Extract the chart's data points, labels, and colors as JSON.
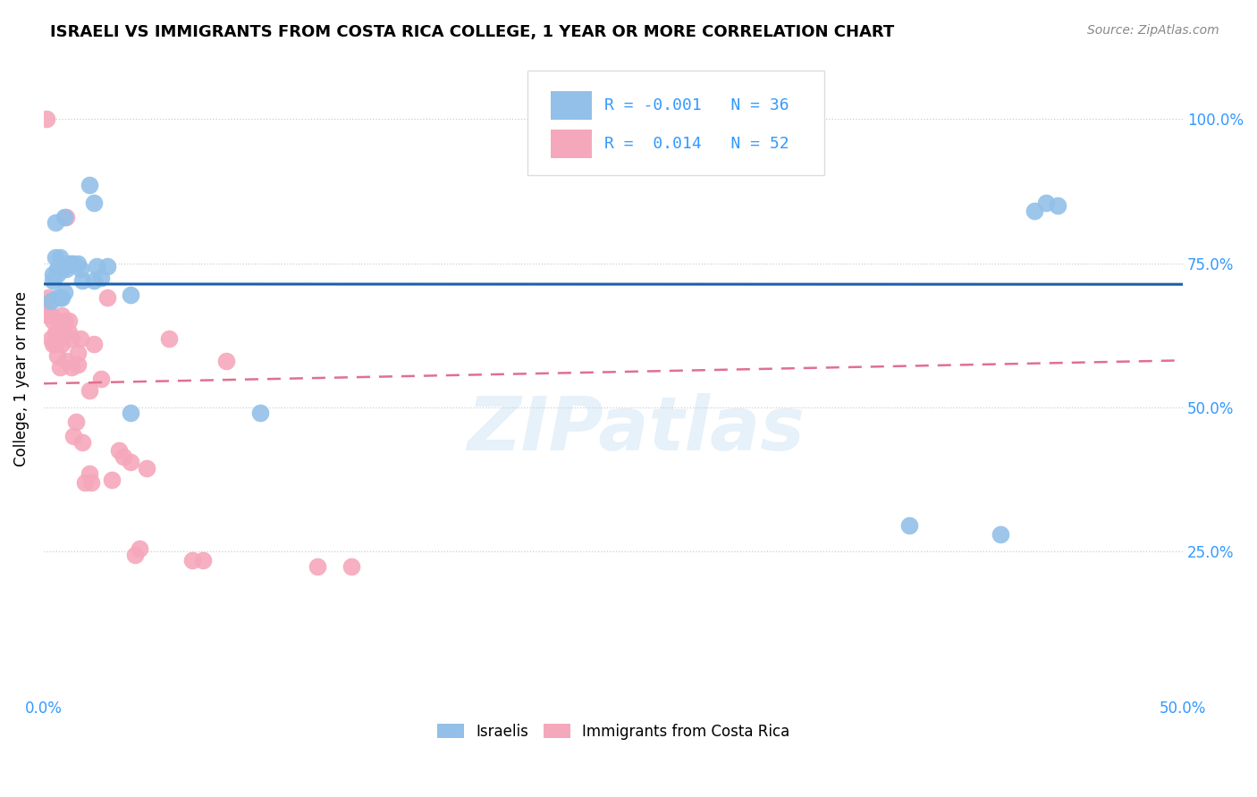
{
  "title": "ISRAELI VS IMMIGRANTS FROM COSTA RICA COLLEGE, 1 YEAR OR MORE CORRELATION CHART",
  "source": "Source: ZipAtlas.com",
  "ylabel": "College, 1 year or more",
  "xlim": [
    0,
    0.5
  ],
  "ylim": [
    0,
    1.1
  ],
  "xtick_positions": [
    0.0,
    0.5
  ],
  "xtick_labels": [
    "0.0%",
    "50.0%"
  ],
  "ytick_positions": [
    0.25,
    0.5,
    0.75,
    1.0
  ],
  "ytick_labels": [
    "25.0%",
    "50.0%",
    "75.0%",
    "100.0%"
  ],
  "legend_r_blue": "-0.001",
  "legend_n_blue": "36",
  "legend_r_pink": "0.014",
  "legend_n_pink": "52",
  "blue_color": "#92c0e8",
  "pink_color": "#f5a8bb",
  "blue_line_color": "#1a5fa8",
  "pink_line_color": "#e07090",
  "watermark": "ZIPatlas",
  "blue_x": [
    0.003,
    0.004,
    0.004,
    0.005,
    0.005,
    0.006,
    0.006,
    0.006,
    0.007,
    0.007,
    0.007,
    0.008,
    0.008,
    0.009,
    0.009,
    0.01,
    0.011,
    0.012,
    0.013,
    0.015,
    0.016,
    0.017,
    0.02,
    0.022,
    0.022,
    0.023,
    0.025,
    0.028,
    0.038,
    0.038,
    0.095,
    0.38,
    0.42,
    0.435,
    0.44,
    0.445
  ],
  "blue_y": [
    0.685,
    0.72,
    0.73,
    0.76,
    0.82,
    0.69,
    0.73,
    0.74,
    0.69,
    0.74,
    0.76,
    0.69,
    0.74,
    0.7,
    0.83,
    0.74,
    0.75,
    0.75,
    0.75,
    0.75,
    0.74,
    0.72,
    0.885,
    0.855,
    0.72,
    0.745,
    0.725,
    0.745,
    0.49,
    0.695,
    0.49,
    0.295,
    0.28,
    0.84,
    0.855,
    0.85
  ],
  "pink_x": [
    0.001,
    0.001,
    0.001,
    0.002,
    0.002,
    0.003,
    0.003,
    0.004,
    0.004,
    0.005,
    0.005,
    0.006,
    0.006,
    0.006,
    0.007,
    0.007,
    0.008,
    0.008,
    0.008,
    0.009,
    0.01,
    0.01,
    0.011,
    0.011,
    0.012,
    0.012,
    0.013,
    0.014,
    0.015,
    0.015,
    0.016,
    0.017,
    0.018,
    0.02,
    0.02,
    0.021,
    0.022,
    0.025,
    0.028,
    0.03,
    0.033,
    0.035,
    0.038,
    0.04,
    0.042,
    0.045,
    0.055,
    0.065,
    0.07,
    0.08,
    0.12,
    0.135
  ],
  "pink_y": [
    1.0,
    0.68,
    0.67,
    0.66,
    0.69,
    0.62,
    0.66,
    0.61,
    0.65,
    0.61,
    0.63,
    0.59,
    0.63,
    0.615,
    0.63,
    0.57,
    0.61,
    0.66,
    0.64,
    0.65,
    0.58,
    0.83,
    0.63,
    0.65,
    0.57,
    0.62,
    0.45,
    0.475,
    0.575,
    0.595,
    0.62,
    0.44,
    0.37,
    0.385,
    0.53,
    0.37,
    0.61,
    0.55,
    0.69,
    0.375,
    0.425,
    0.415,
    0.405,
    0.245,
    0.255,
    0.395,
    0.62,
    0.235,
    0.235,
    0.58,
    0.225,
    0.225
  ]
}
